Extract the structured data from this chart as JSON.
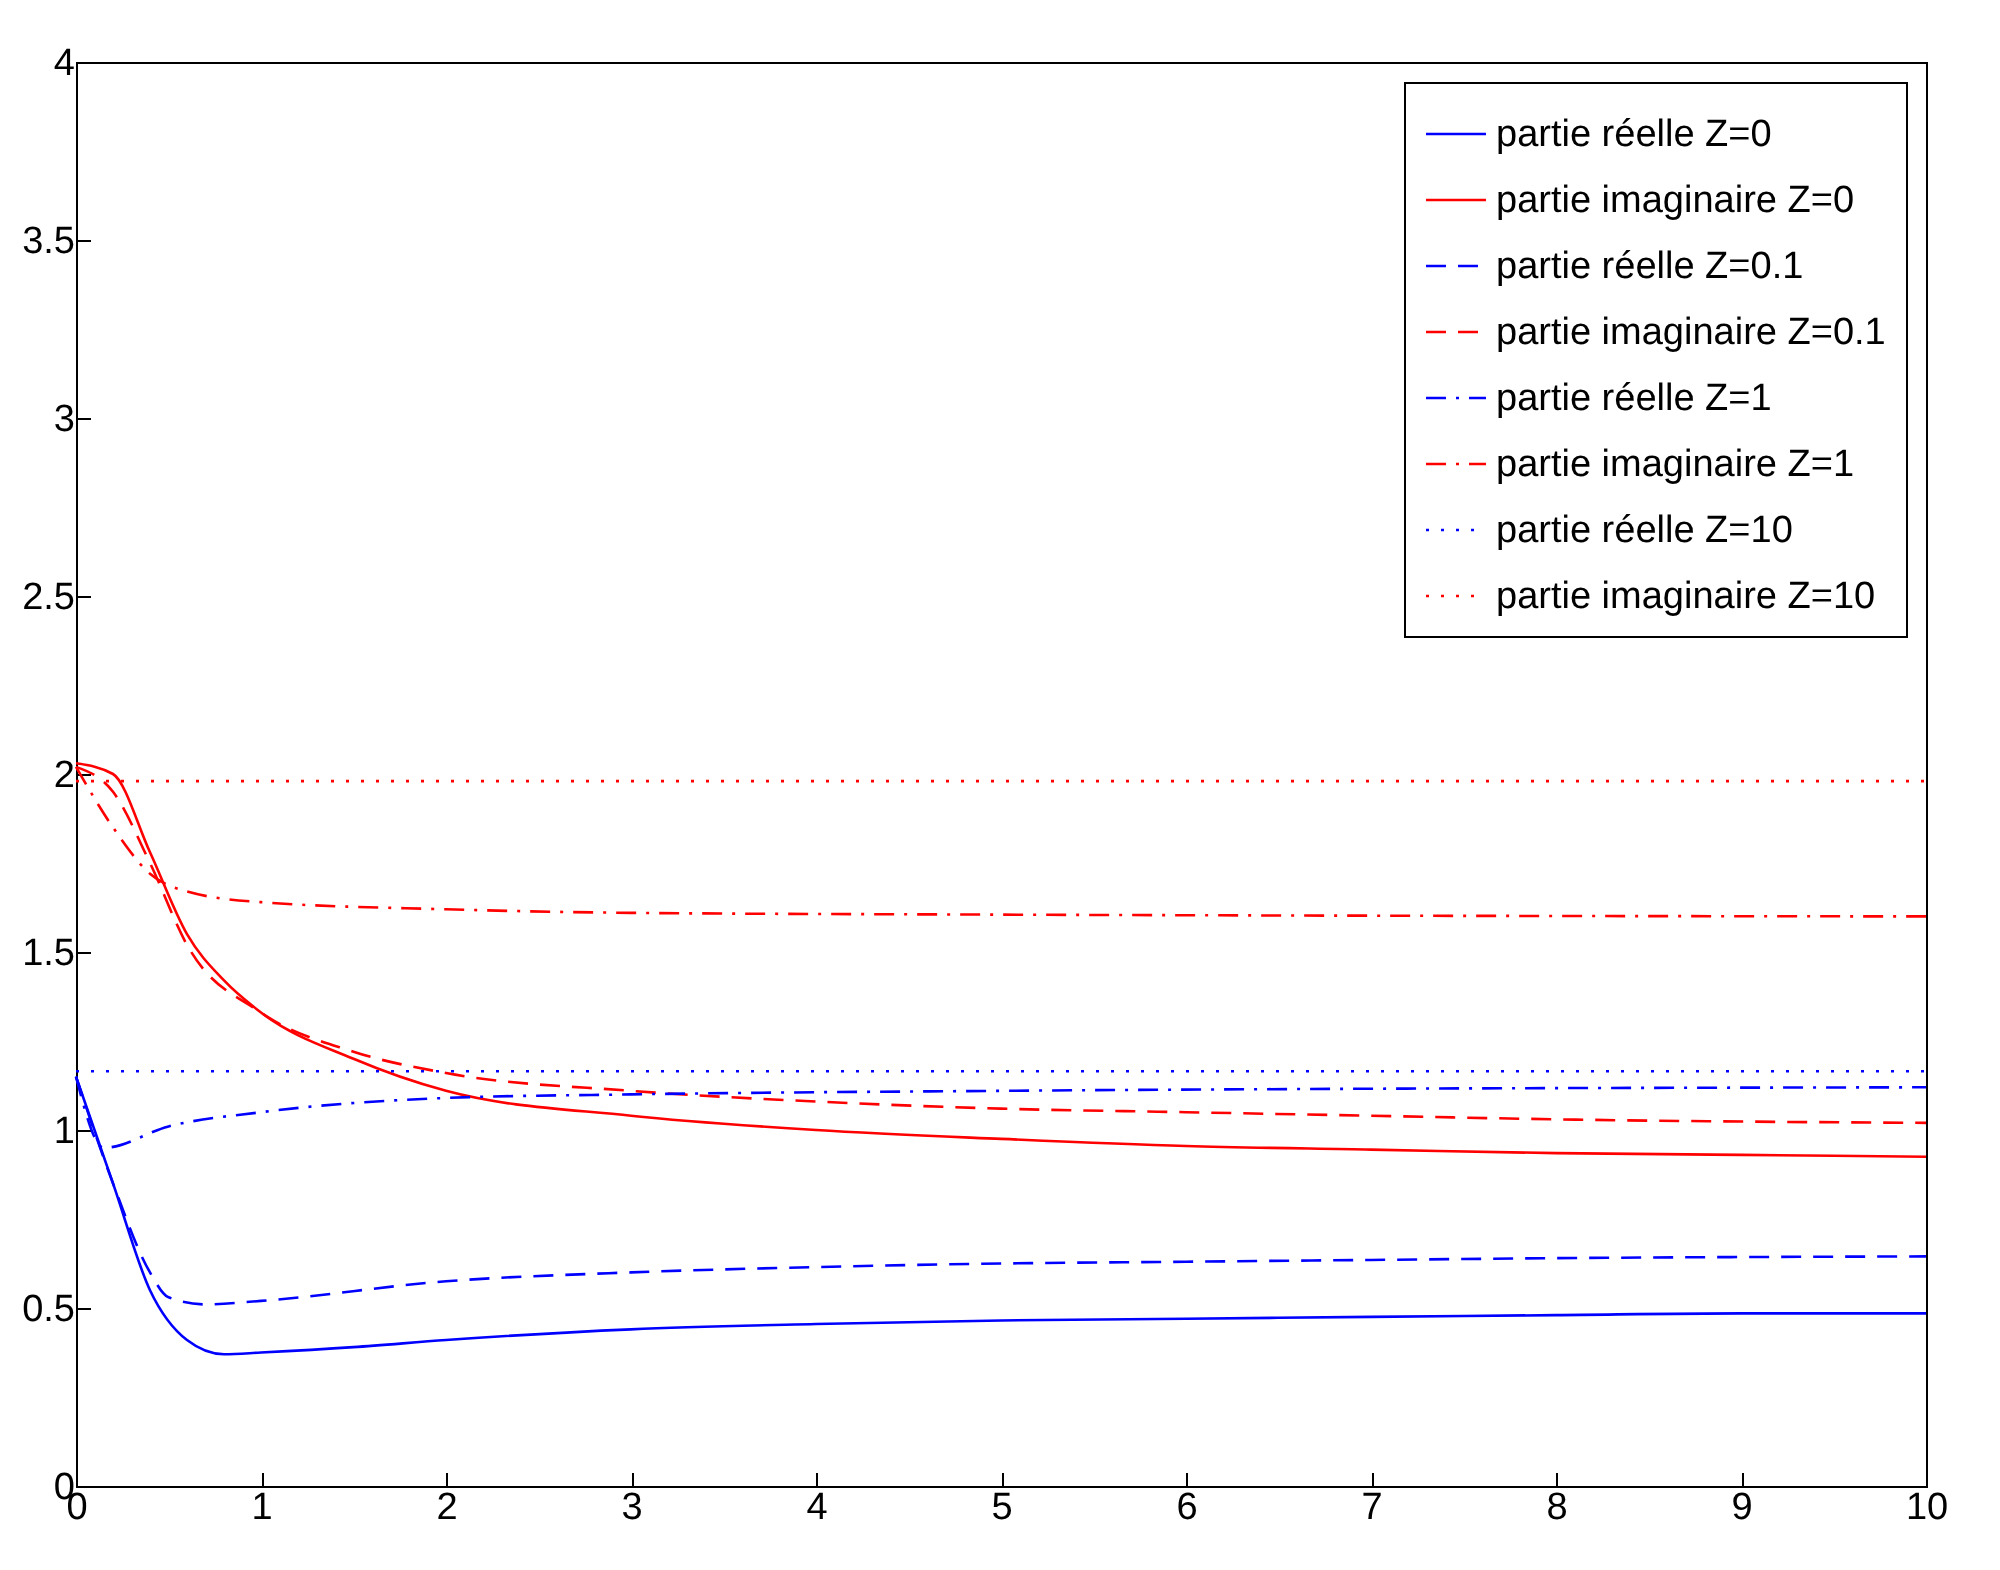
{
  "chart_data": {
    "type": "line",
    "xlim": [
      0,
      10
    ],
    "ylim": [
      0,
      4
    ],
    "xticks": [
      0,
      1,
      2,
      3,
      4,
      5,
      6,
      7,
      8,
      9,
      10
    ],
    "yticks": [
      0,
      0.5,
      1,
      1.5,
      2,
      2.5,
      3,
      3.5,
      4
    ],
    "grid": false,
    "legend": "top right",
    "marker": "none",
    "series": [
      {
        "name": "partie réelle Z=0",
        "color": "#0000ff",
        "line_style": "solid",
        "x": [
          0,
          0.2,
          0.4,
          0.6,
          0.8,
          1,
          1.5,
          2,
          3,
          4,
          5,
          6,
          7,
          8,
          9,
          10
        ],
        "values": [
          1.15,
          0.85,
          0.55,
          0.41,
          0.37,
          0.375,
          0.39,
          0.41,
          0.44,
          0.455,
          0.465,
          0.47,
          0.475,
          0.48,
          0.485,
          0.485
        ]
      },
      {
        "name": "partie imaginaire Z=0",
        "color": "#ff0000",
        "line_style": "solid",
        "x": [
          0,
          0.2,
          0.4,
          0.6,
          0.8,
          1,
          1.5,
          2,
          3,
          4,
          5,
          6,
          7,
          8,
          9,
          10
        ],
        "values": [
          2.03,
          2.0,
          1.78,
          1.55,
          1.42,
          1.33,
          1.2,
          1.11,
          1.04,
          1.0,
          0.975,
          0.955,
          0.945,
          0.935,
          0.93,
          0.925
        ]
      },
      {
        "name": "partie réelle Z=0.1",
        "color": "#0000ff",
        "line_style": "dashed",
        "x": [
          0,
          0.2,
          0.4,
          0.5,
          0.7,
          1,
          2,
          3,
          4,
          5,
          6,
          7,
          8,
          10
        ],
        "values": [
          1.15,
          0.85,
          0.6,
          0.53,
          0.51,
          0.52,
          0.575,
          0.6,
          0.615,
          0.625,
          0.63,
          0.635,
          0.64,
          0.645
        ]
      },
      {
        "name": "partie imaginaire Z=0.1",
        "color": "#ff0000",
        "line_style": "dashed",
        "x": [
          0,
          0.2,
          0.4,
          0.6,
          1,
          1.5,
          2,
          3,
          4,
          5,
          6,
          7,
          8,
          10
        ],
        "values": [
          2.02,
          1.95,
          1.75,
          1.52,
          1.33,
          1.22,
          1.16,
          1.11,
          1.08,
          1.06,
          1.05,
          1.04,
          1.03,
          1.02
        ]
      },
      {
        "name": "partie réelle Z=1",
        "color": "#0000ff",
        "line_style": "dashdot",
        "x": [
          0,
          0.15,
          0.5,
          1,
          2,
          3,
          5,
          10
        ],
        "values": [
          1.15,
          0.95,
          1.01,
          1.05,
          1.09,
          1.1,
          1.11,
          1.12
        ]
      },
      {
        "name": "partie imaginaire Z=1",
        "color": "#ff0000",
        "line_style": "dashdot",
        "x": [
          0,
          0.2,
          0.4,
          0.6,
          1,
          2,
          3,
          5,
          10
        ],
        "values": [
          2.02,
          1.85,
          1.72,
          1.67,
          1.64,
          1.62,
          1.61,
          1.605,
          1.6
        ]
      },
      {
        "name": "partie réelle Z=10",
        "color": "#0000ff",
        "line_style": "dotted",
        "x": [
          0,
          10
        ],
        "values": [
          1.165,
          1.165
        ]
      },
      {
        "name": "partie imaginaire Z=10",
        "color": "#ff0000",
        "line_style": "dotted",
        "x": [
          0,
          10
        ],
        "values": [
          1.98,
          1.98
        ]
      }
    ]
  }
}
